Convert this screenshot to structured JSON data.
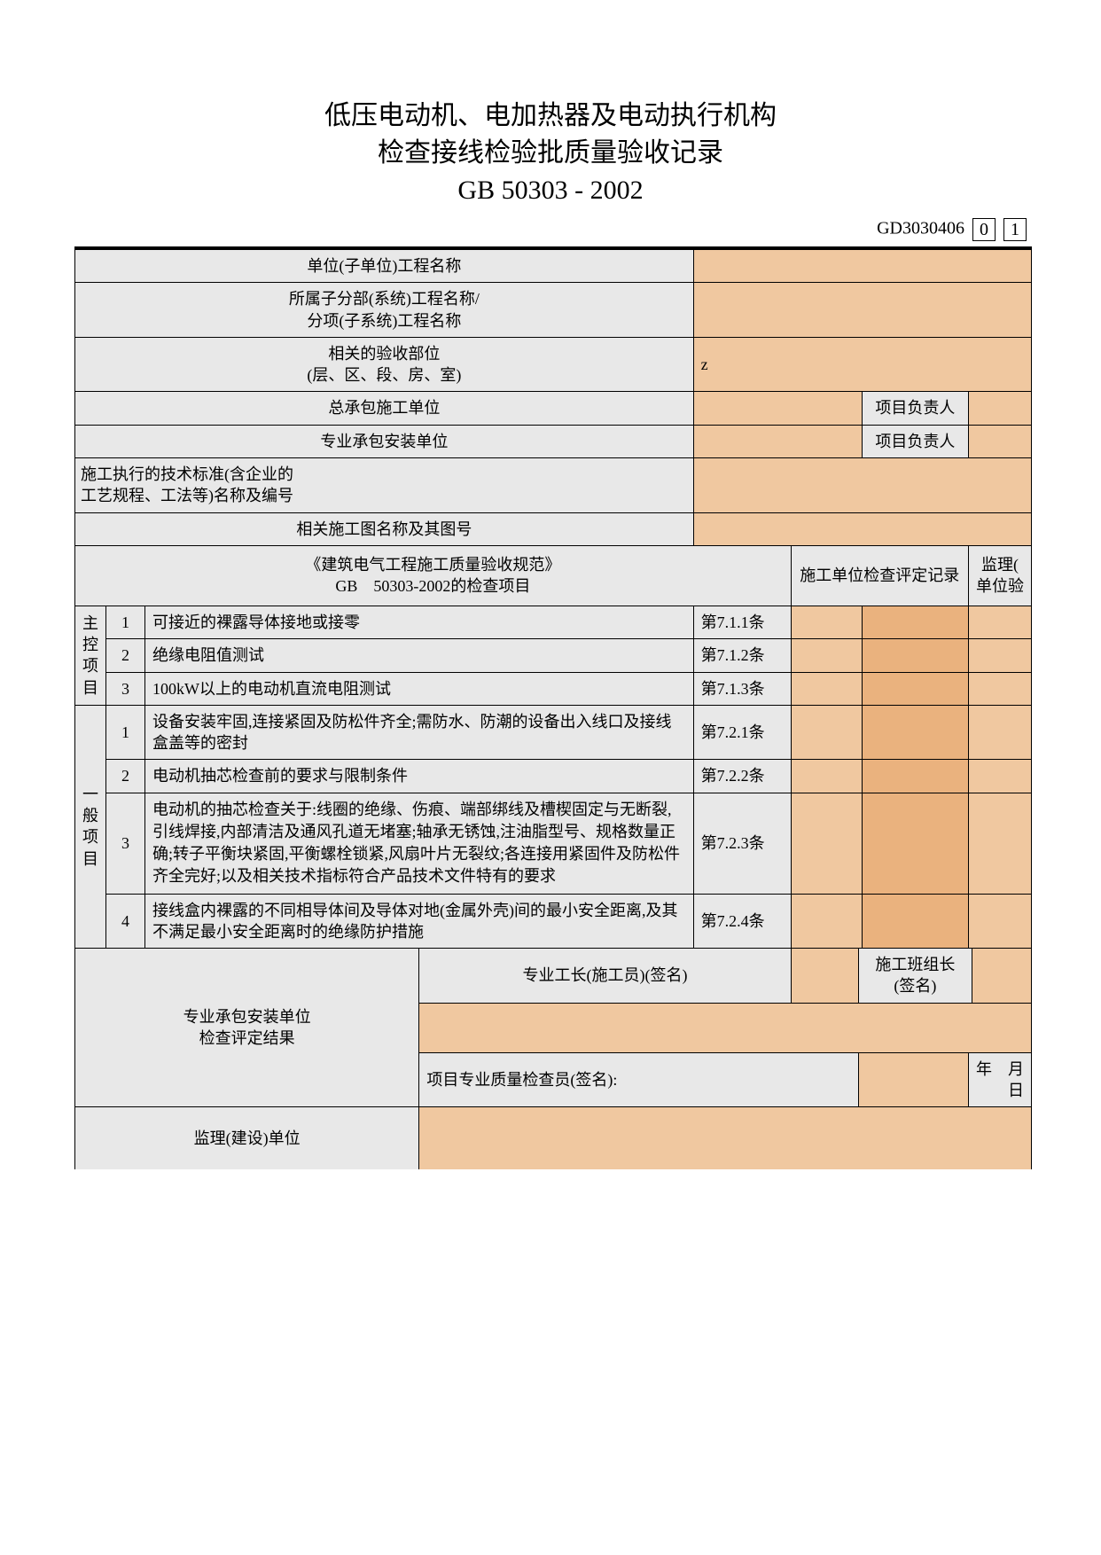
{
  "title": {
    "line1": "低压电动机、电加热器及电动执行机构",
    "line2": "检查接线检验批质量验收记录",
    "line3": "GB 50303 - 2002"
  },
  "doc_id": {
    "prefix": "GD3030406",
    "box1": "0",
    "box2": "1"
  },
  "header_rows": [
    {
      "label": "单位(子单位)工程名称",
      "value": ""
    },
    {
      "label": "所属子分部(系统)工程名称/\n分项(子系统)工程名称",
      "value": ""
    },
    {
      "label": "相关的验收部位\n(层、区、段、房、室)",
      "value": "z"
    }
  ],
  "contractor_rows": [
    {
      "label": "总承包施工单位",
      "value": "",
      "resp_label": "项目负责人",
      "resp_value": ""
    },
    {
      "label": "专业承包安装单位",
      "value": "",
      "resp_label": "项目负责人",
      "resp_value": ""
    }
  ],
  "post_rows": [
    {
      "label": "施工执行的技术标准(含企业的\n工艺规程、工法等)名称及编号",
      "value": ""
    },
    {
      "label": "相关施工图名称及其图号",
      "value": ""
    }
  ],
  "check_header": {
    "spec": "《建筑电气工程施工质量验收规范》\nGB　50303-2002的检查项目",
    "col_record": "施工单位检查评定记录",
    "col_supervise": "监理(\n单位验"
  },
  "groups": [
    {
      "label": "主控项目",
      "items": [
        {
          "n": "1",
          "desc": "可接近的裸露导体接地或接零",
          "ref": "第7.1.1条"
        },
        {
          "n": "2",
          "desc": "绝缘电阻值测试",
          "ref": "第7.1.2条"
        },
        {
          "n": "3",
          "desc": "100kW以上的电动机直流电阻测试",
          "ref": "第7.1.3条"
        }
      ]
    },
    {
      "label": "一般项目",
      "items": [
        {
          "n": "1",
          "desc": "设备安装牢固,连接紧固及防松件齐全;需防水、防潮的设备出入线口及接线盒盖等的密封",
          "ref": "第7.2.1条"
        },
        {
          "n": "2",
          "desc": "电动机抽芯检查前的要求与限制条件",
          "ref": "第7.2.2条"
        },
        {
          "n": "3",
          "desc": "电动机的抽芯检查关于:线圈的绝缘、伤痕、端部绑线及槽楔固定与无断裂,引线焊接,内部清洁及通风孔道无堵塞;轴承无锈蚀,注油脂型号、规格数量正确;转子平衡块紧固,平衡螺栓锁紧,风扇叶片无裂纹;各连接用紧固件及防松件齐全完好;以及相关技术指标符合产品技术文件特有的要求",
          "ref": "第7.2.3条",
          "clip": true
        },
        {
          "n": "4",
          "desc": "接线盒内裸露的不同相导体间及导体对地(金属外壳)间的最小安全距离,及其不满足最小安全距离时的绝缘防护措施",
          "ref": "第7.2.4条"
        }
      ]
    }
  ],
  "sign_block": {
    "unit_label": "专业承包安装单位\n检查评定结果",
    "foreman_label": "专业工长(施工员)(签名)",
    "teamlead_label": "施工班组长(签名)",
    "qc_label": "项目专业质量检查员(签名):",
    "date_label": "年　月　日",
    "supervise_label": "监理(建设)单位"
  },
  "colors": {
    "peach": "#f0c8a0",
    "peach_dark": "#eab27e",
    "grey": "#e8e8e8",
    "border": "#000000",
    "bg": "#ffffff"
  },
  "fonts": {
    "body_pt": 18,
    "title_pt": 30,
    "id_pt": 20
  }
}
